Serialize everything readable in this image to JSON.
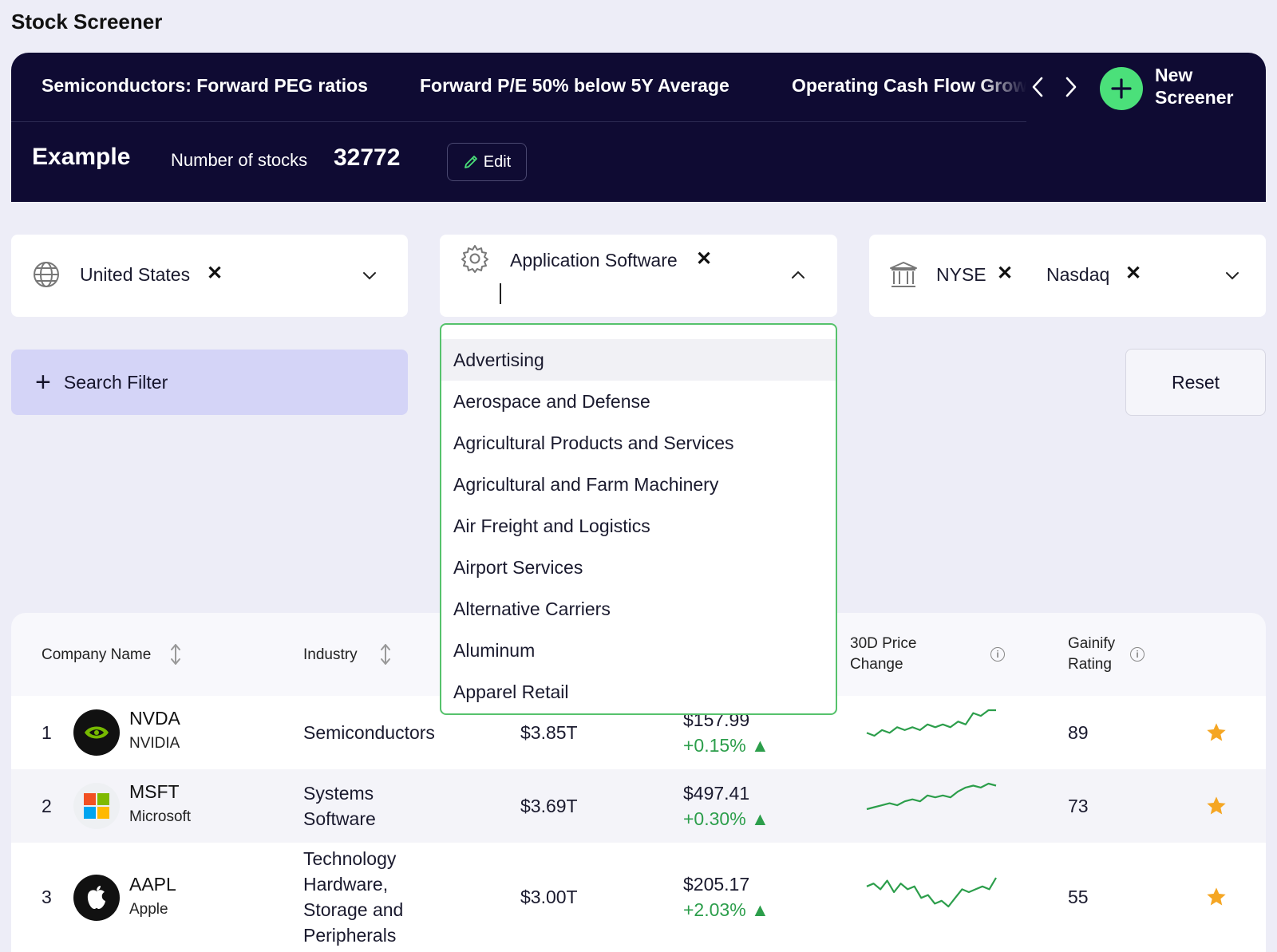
{
  "page": {
    "title": "Stock Screener"
  },
  "banner": {
    "tabs": [
      "Semiconductors: Forward PEG ratios",
      "Forward P/E 50% below 5Y Average",
      "Operating Cash Flow Growth"
    ],
    "new_screener_label": "New Screener",
    "screener_name": "Example",
    "num_stocks_label": "Number of stocks",
    "num_stocks_value": "32772",
    "edit_label": "Edit"
  },
  "filters": {
    "country": {
      "value": "United States"
    },
    "industry": {
      "value": "Application Software",
      "search_text": ""
    },
    "exchange": {
      "values": [
        "NYSE",
        "Nasdaq"
      ]
    },
    "search_filter_label": "Search Filter",
    "reset_label": "Reset"
  },
  "dropdown": {
    "highlighted_index": 0,
    "options": [
      "Advertising",
      "Aerospace and Defense",
      "Agricultural Products and Services",
      "Agricultural and Farm Machinery",
      "Air Freight and Logistics",
      "Airport Services",
      "Alternative Carriers",
      "Aluminum",
      "Apparel Retail"
    ]
  },
  "table": {
    "headers": {
      "company": "Company Name",
      "industry": "Industry",
      "price_change_30d_line1": "30D Price",
      "price_change_30d_line2": "Change",
      "rating_line1": "Gainify",
      "rating_line2": "Rating"
    },
    "rows": [
      {
        "rank": "1",
        "ticker": "NVDA",
        "name": "NVIDIA",
        "industry_lines": [
          "Semiconductors"
        ],
        "market_cap": "$3.85T",
        "price": "$157.99",
        "change": "+0.15% ▲",
        "rating": "89",
        "logo": "nvidia-logo",
        "sparkline": [
          3,
          2,
          4,
          3,
          5,
          4,
          5,
          4,
          6,
          5,
          6,
          5,
          7,
          6,
          10,
          9,
          11,
          11
        ]
      },
      {
        "rank": "2",
        "ticker": "MSFT",
        "name": "Microsoft",
        "industry_lines": [
          "Systems",
          "Software"
        ],
        "market_cap": "$3.69T",
        "price": "$497.41",
        "change": "+0.30% ▲",
        "rating": "73",
        "logo": "microsoft-logo",
        "sparkline": [
          1,
          2,
          3,
          4,
          3,
          5,
          6,
          5,
          8,
          7,
          8,
          7,
          10,
          12,
          13,
          12,
          14,
          13
        ]
      },
      {
        "rank": "3",
        "ticker": "AAPL",
        "name": "Apple",
        "industry_lines": [
          "Technology",
          "Hardware,",
          "Storage and",
          "Peripherals"
        ],
        "market_cap": "$3.00T",
        "price": "$205.17",
        "change": "+2.03% ▲",
        "rating": "55",
        "logo": "apple-logo",
        "sparkline": [
          9,
          10,
          8,
          11,
          7,
          10,
          8,
          9,
          5,
          6,
          3,
          4,
          2,
          5,
          8,
          7,
          8,
          9,
          8,
          12
        ]
      }
    ]
  },
  "colors": {
    "banner_bg": "#0f0b33",
    "accent_green": "#4be07a",
    "positive": "#2c9e4b",
    "star": "#f5a623",
    "search_filter_bg": "#d4d4f7"
  }
}
